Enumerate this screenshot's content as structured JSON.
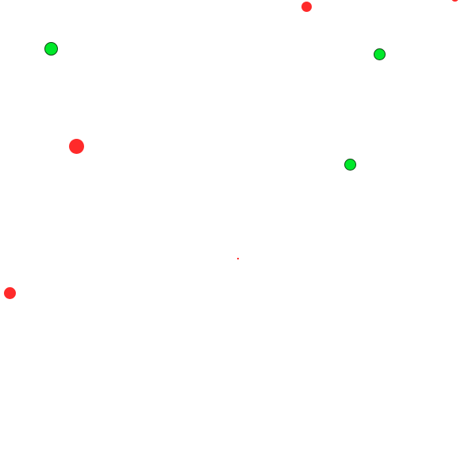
{
  "game": {
    "colors": {
      "background": "#ffffff",
      "green": "#00e82a",
      "green_outline": "#0a4a12",
      "red": "#ff2a2a"
    },
    "entities": [
      {
        "type": "green-dot",
        "color": "green"
      },
      {
        "type": "green-dot",
        "color": "green"
      },
      {
        "type": "green-dot",
        "color": "green"
      },
      {
        "type": "red-dot",
        "color": "red"
      },
      {
        "type": "red-dot",
        "color": "red"
      },
      {
        "type": "red-dot",
        "color": "red"
      },
      {
        "type": "red-dot",
        "color": "red"
      },
      {
        "type": "red-dot",
        "color": "red"
      }
    ]
  }
}
